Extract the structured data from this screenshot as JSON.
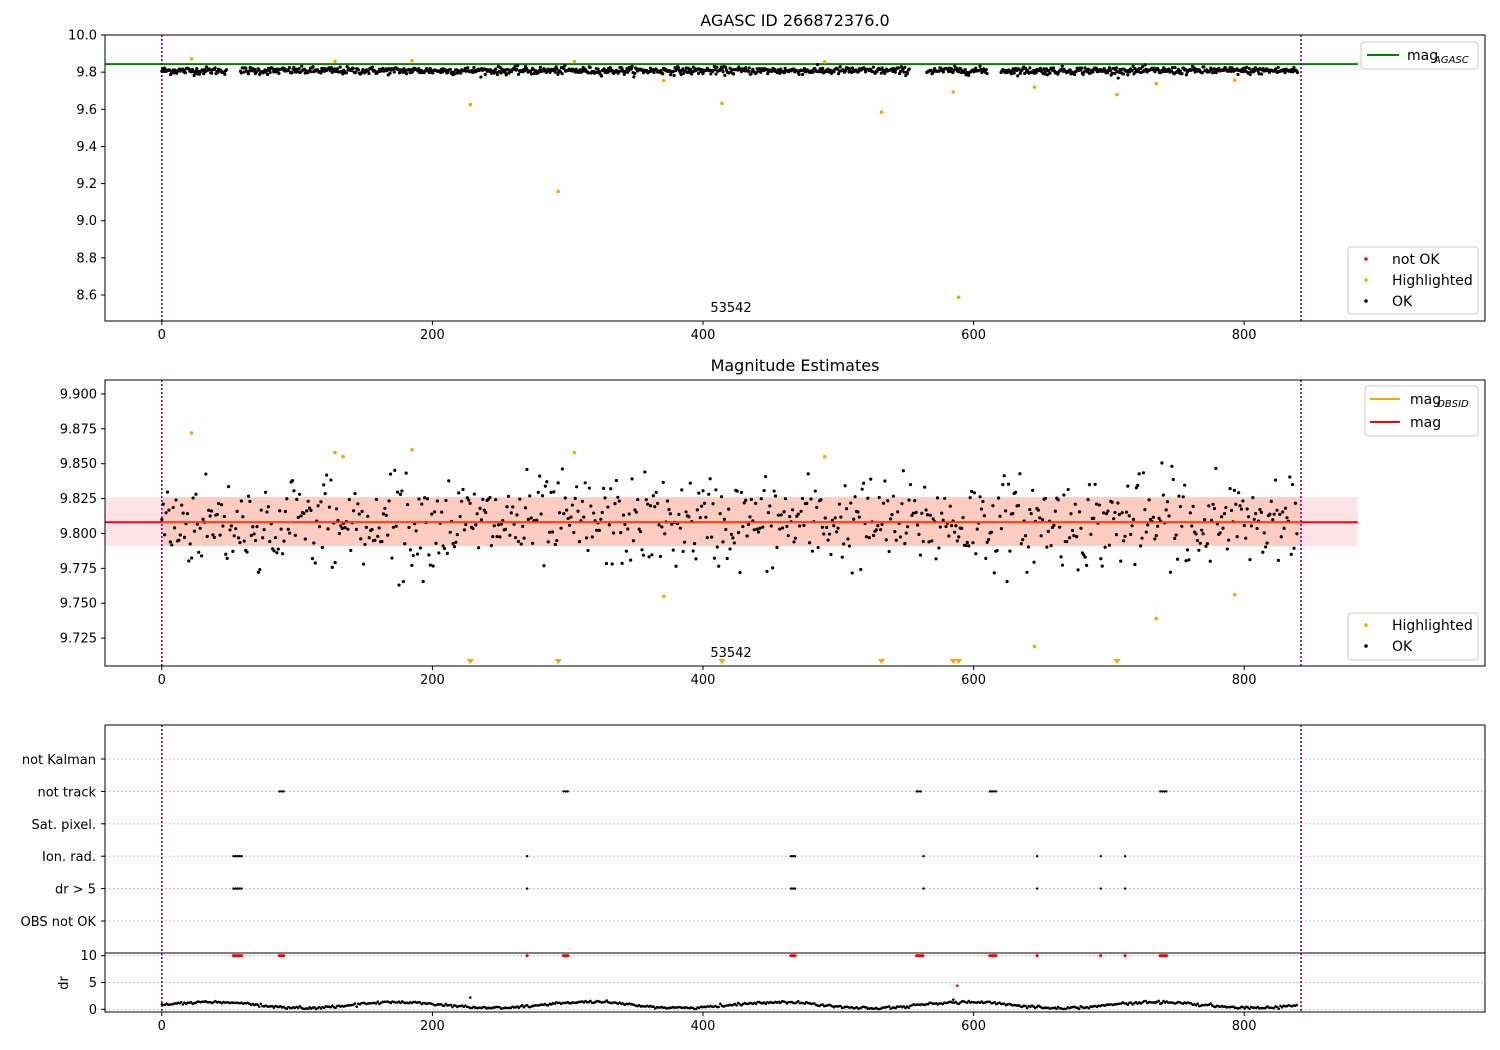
{
  "chart_data": [
    {
      "type": "scatter",
      "title": "AGASC ID 266872376.0",
      "xlim": [
        -42,
        978
      ],
      "ylim": [
        8.46,
        10.0
      ],
      "xticks": [
        0,
        200,
        400,
        600,
        800
      ],
      "yticks": [
        "10.0",
        "9.8",
        "9.6",
        "9.4",
        "9.2",
        "9.0",
        "8.8",
        "8.6"
      ],
      "annotation": {
        "text": "53542",
        "x": 420
      },
      "colors": {
        "ok": "#000000",
        "highlighted": "#ffa500",
        "not_ok": "#ff0000",
        "mag_agasc": "#008000",
        "vline": "#800080"
      },
      "reference_lines": {
        "mag_agasc": 9.843
      },
      "vlines": [
        0,
        842
      ],
      "highlighted_points": [
        {
          "x": 22,
          "y": 9.872
        },
        {
          "x": 228,
          "y": 9.625
        },
        {
          "x": 293,
          "y": 9.157
        },
        {
          "x": 305,
          "y": 9.857
        },
        {
          "x": 371,
          "y": 9.755
        },
        {
          "x": 414,
          "y": 9.632
        },
        {
          "x": 490,
          "y": 9.855
        },
        {
          "x": 532,
          "y": 9.585
        },
        {
          "x": 585,
          "y": 9.693
        },
        {
          "x": 589,
          "y": 8.588
        },
        {
          "x": 645,
          "y": 9.719
        },
        {
          "x": 706,
          "y": 9.679
        },
        {
          "x": 735,
          "y": 9.738
        },
        {
          "x": 793,
          "y": 9.757
        },
        {
          "x": 185,
          "y": 9.862
        },
        {
          "x": 128,
          "y": 9.858
        }
      ],
      "ok_series_model": {
        "x_range": [
          0,
          840
        ],
        "count": 1300,
        "mean": 9.808,
        "spread": 0.018
      },
      "legend": {
        "lines": [
          {
            "label": "mag",
            "sub": "AGASC",
            "color": "#008000"
          }
        ],
        "points": [
          {
            "label": "not OK",
            "color": "#ff0000"
          },
          {
            "label": "Highlighted",
            "color": "#ffa500"
          },
          {
            "label": "OK",
            "color": "#000000"
          }
        ]
      }
    },
    {
      "type": "scatter",
      "title": "Magnitude Estimates",
      "xlim": [
        -42,
        978
      ],
      "ylim": [
        9.705,
        9.91
      ],
      "xticks": [
        0,
        200,
        400,
        600,
        800
      ],
      "yticks": [
        "9.900",
        "9.875",
        "9.850",
        "9.825",
        "9.800",
        "9.775",
        "9.750",
        "9.725"
      ],
      "annotation": {
        "text": "53542",
        "x": 420
      },
      "colors": {
        "ok": "#000000",
        "highlighted": "#ffa500",
        "mag": "#ff0000",
        "band_outer": "#ffc0cb",
        "band_inner": "#ffa07a"
      },
      "reference_lines": {
        "mag": 9.808,
        "band": [
          9.791,
          9.826
        ],
        "band_outer_x": [
          -42,
          884
        ],
        "band_inner_x": [
          0,
          842
        ]
      },
      "highlighted_points": [
        {
          "x": 22,
          "y": 9.872
        },
        {
          "x": 128,
          "y": 9.858
        },
        {
          "x": 134,
          "y": 9.855
        },
        {
          "x": 185,
          "y": 9.86
        },
        {
          "x": 305,
          "y": 9.858
        },
        {
          "x": 371,
          "y": 9.755
        },
        {
          "x": 490,
          "y": 9.855
        },
        {
          "x": 645,
          "y": 9.719
        },
        {
          "x": 735,
          "y": 9.739
        },
        {
          "x": 793,
          "y": 9.756
        }
      ],
      "off_scale_markers_x": [
        228,
        293,
        414,
        532,
        585,
        589,
        706
      ],
      "ok_series_model": {
        "x_range": [
          0,
          840
        ],
        "count": 800,
        "mean": 9.808,
        "spread": 0.018
      },
      "legend": {
        "lines": [
          {
            "label": "mag",
            "sub": "OBSID",
            "color": "#ffa500"
          },
          {
            "label": "mag",
            "sub": "",
            "color": "#ff0000"
          }
        ],
        "points": [
          {
            "label": "Highlighted",
            "color": "#ffa500"
          },
          {
            "label": "OK",
            "color": "#000000"
          }
        ]
      }
    },
    {
      "type": "scatter",
      "title": "",
      "xlim": [
        -42,
        978
      ],
      "categories": [
        "not Kalman",
        "not track",
        "Sat. pixel.",
        "Ion. rad.",
        "dr > 5",
        "OBS not OK"
      ],
      "flag_points": {
        "not track": [
          [
            87,
            91
          ],
          [
            297,
            301
          ],
          [
            558,
            562
          ],
          [
            612,
            617
          ],
          [
            738,
            743
          ]
        ],
        "Ion. rad.": [
          [
            53,
            59
          ],
          [
            270,
            270
          ],
          [
            465,
            469
          ],
          [
            563,
            563
          ],
          [
            647,
            647
          ],
          [
            694,
            694
          ],
          [
            712,
            712
          ]
        ],
        "dr > 5": [
          [
            53,
            59
          ],
          [
            270,
            270
          ],
          [
            465,
            469
          ],
          [
            563,
            563
          ],
          [
            647,
            647
          ],
          [
            694,
            694
          ],
          [
            712,
            712
          ]
        ]
      },
      "colors": {
        "flag": "#000000",
        "dr_ok": "#000000",
        "dr_high": "#ff0000"
      }
    },
    {
      "type": "scatter",
      "title": "",
      "ylabel": "dr",
      "xlim": [
        -42,
        978
      ],
      "ylim": [
        -0.5,
        10.5
      ],
      "xticks": [
        0,
        200,
        400,
        600,
        800
      ],
      "yticks": [
        "10",
        "5",
        "0"
      ],
      "high_dr_clusters_x": [
        [
          53,
          59
        ],
        [
          87,
          91
        ],
        [
          270,
          270
        ],
        [
          297,
          301
        ],
        [
          465,
          469
        ],
        [
          558,
          563
        ],
        [
          612,
          617
        ],
        [
          647,
          647
        ],
        [
          694,
          694
        ],
        [
          712,
          712
        ],
        [
          738,
          743
        ]
      ],
      "extra_points": [
        {
          "x": 228,
          "y": 2.2
        },
        {
          "x": 588,
          "y": 4.4
        },
        {
          "x": 585,
          "y": 1.8
        }
      ],
      "dr_model": {
        "x_range": [
          0,
          840
        ],
        "baseline": 0.8,
        "amplitude": 0.6
      }
    }
  ]
}
